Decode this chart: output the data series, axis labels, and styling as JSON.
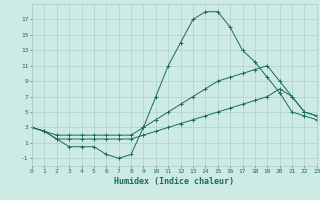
{
  "xlabel": "Humidex (Indice chaleur)",
  "background_color": "#ceeae4",
  "grid_color": "#a8ccc6",
  "line_color": "#1a6b5a",
  "x_min": 0,
  "x_max": 23,
  "y_min": -2,
  "y_max": 19,
  "yticks": [
    -1,
    1,
    3,
    5,
    7,
    9,
    11,
    13,
    15,
    17
  ],
  "xticks": [
    0,
    1,
    2,
    3,
    4,
    5,
    6,
    7,
    8,
    9,
    10,
    11,
    12,
    13,
    14,
    15,
    16,
    17,
    18,
    19,
    20,
    21,
    22,
    23
  ],
  "line1_x": [
    0,
    1,
    2,
    3,
    4,
    5,
    6,
    7,
    8,
    9,
    10,
    11,
    12,
    13,
    14,
    15,
    16,
    17,
    18,
    19,
    20,
    21,
    22,
    23
  ],
  "line1_y": [
    3,
    2.5,
    1.5,
    0.5,
    0.5,
    0.5,
    -0.5,
    -1,
    -0.5,
    3,
    7,
    11,
    14,
    17,
    18,
    18,
    16,
    13,
    11.5,
    9.5,
    7.5,
    5,
    4.5,
    4
  ],
  "line2_x": [
    0,
    1,
    2,
    3,
    4,
    5,
    6,
    7,
    8,
    9,
    10,
    11,
    12,
    13,
    14,
    15,
    16,
    17,
    18,
    19,
    20,
    21,
    22,
    23
  ],
  "line2_y": [
    3,
    2.5,
    2,
    2,
    2,
    2,
    2,
    2,
    2,
    3,
    4,
    5,
    6,
    7,
    8,
    9,
    9.5,
    10,
    10.5,
    11,
    9,
    7,
    5,
    4.5
  ],
  "line3_x": [
    0,
    1,
    2,
    3,
    4,
    5,
    6,
    7,
    8,
    9,
    10,
    11,
    12,
    13,
    14,
    15,
    16,
    17,
    18,
    19,
    20,
    21,
    22,
    23
  ],
  "line3_y": [
    3,
    2.5,
    1.5,
    1.5,
    1.5,
    1.5,
    1.5,
    1.5,
    1.5,
    2,
    2.5,
    3,
    3.5,
    4,
    4.5,
    5,
    5.5,
    6,
    6.5,
    7,
    8,
    7,
    5,
    4.5
  ]
}
